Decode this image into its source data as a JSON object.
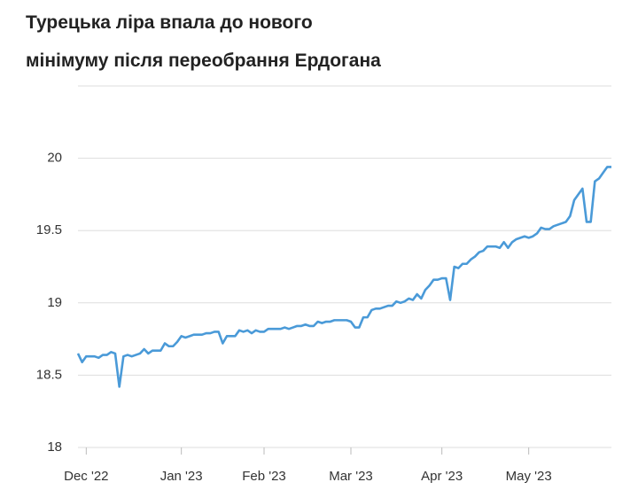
{
  "chart_data": {
    "type": "line",
    "title": [
      "Турецька ліра впала до нового",
      "мінімуму після переобрання Ердогана"
    ],
    "categories": [
      null,
      null,
      "Dec '22",
      null,
      null,
      null,
      null,
      null,
      null,
      null,
      null,
      null,
      null,
      null,
      null,
      null,
      null,
      null,
      null,
      null,
      null,
      null,
      null,
      null,
      null,
      "Jan '23",
      null,
      null,
      null,
      null,
      null,
      null,
      null,
      null,
      null,
      null,
      null,
      null,
      null,
      null,
      null,
      null,
      null,
      null,
      null,
      "Feb '23",
      null,
      null,
      null,
      null,
      null,
      null,
      null,
      null,
      null,
      null,
      null,
      null,
      null,
      null,
      null,
      null,
      null,
      null,
      null,
      null,
      "Mar '23",
      null,
      null,
      null,
      null,
      null,
      null,
      null,
      null,
      null,
      null,
      null,
      null,
      null,
      null,
      null,
      null,
      null,
      null,
      null,
      null,
      null,
      "Apr '23",
      null,
      null,
      null,
      null,
      null,
      null,
      null,
      null,
      null,
      null,
      null,
      null,
      null,
      null,
      null,
      null,
      null,
      null,
      null,
      null,
      "May '23",
      null,
      null,
      null,
      null,
      null,
      null,
      null,
      null,
      null,
      null,
      null,
      null,
      null,
      null,
      null,
      null,
      null,
      null,
      null,
      null
    ],
    "values": [
      18.65,
      18.59,
      18.63,
      18.63,
      18.63,
      18.62,
      18.64,
      18.64,
      18.66,
      18.65,
      18.42,
      18.63,
      18.64,
      18.63,
      18.64,
      18.65,
      18.68,
      18.65,
      18.67,
      18.67,
      18.67,
      18.72,
      18.7,
      18.7,
      18.73,
      18.77,
      18.76,
      18.77,
      18.78,
      18.78,
      18.78,
      18.79,
      18.79,
      18.8,
      18.8,
      18.72,
      18.77,
      18.77,
      18.77,
      18.81,
      18.8,
      18.81,
      18.79,
      18.81,
      18.8,
      18.8,
      18.82,
      18.82,
      18.82,
      18.82,
      18.83,
      18.82,
      18.83,
      18.84,
      18.84,
      18.85,
      18.84,
      18.84,
      18.87,
      18.86,
      18.87,
      18.87,
      18.88,
      18.88,
      18.88,
      18.88,
      18.87,
      18.83,
      18.83,
      18.9,
      18.9,
      18.95,
      18.96,
      18.96,
      18.97,
      18.98,
      18.98,
      19.01,
      19.0,
      19.01,
      19.03,
      19.02,
      19.06,
      19.03,
      19.09,
      19.12,
      19.16,
      19.16,
      19.17,
      19.17,
      19.02,
      19.25,
      19.24,
      19.27,
      19.27,
      19.3,
      19.32,
      19.35,
      19.36,
      19.39,
      19.39,
      19.39,
      19.38,
      19.42,
      19.38,
      19.42,
      19.44,
      19.45,
      19.46,
      19.45,
      19.46,
      19.48,
      19.52,
      19.51,
      19.51,
      19.53,
      19.54,
      19.55,
      19.56,
      19.6,
      19.71,
      19.75,
      19.79,
      19.56,
      19.56,
      19.84,
      19.86,
      19.9,
      19.94,
      19.94
    ],
    "color": "#4a9ad8",
    "ylim": [
      18,
      20.5
    ],
    "yticks": [
      18,
      18.5,
      19,
      19.5,
      20
    ],
    "grid": true
  }
}
